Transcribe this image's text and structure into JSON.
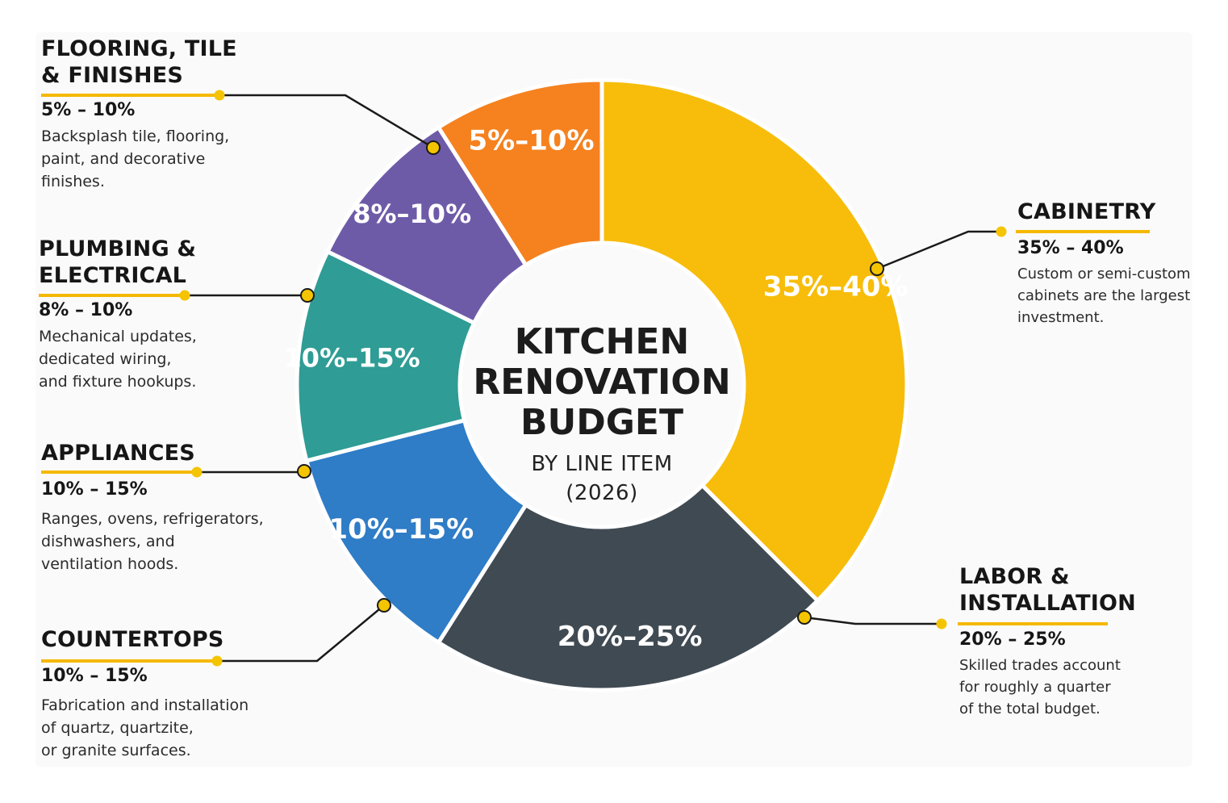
{
  "colors": {
    "leader_line": "#1a1a1a",
    "underline": "#f5b800",
    "dot": "#f5c400"
  },
  "center": {
    "title_lines": [
      "KITCHEN",
      "RENOVATION",
      "BUDGET"
    ],
    "subtitle_lines": [
      "BY LINE ITEM",
      "(2026)"
    ]
  },
  "chart_data": {
    "type": "pie",
    "title": "KITCHEN RENOVATION BUDGET BY LINE ITEM (2026)",
    "donut": true,
    "categories": [
      "CABINETRY",
      "LABOR & INSTALLATION",
      "COUNTERTOPS",
      "APPLIANCES",
      "PLUMBING & ELECTRICAL",
      "FLOORING, TILE & FINISHES"
    ],
    "slices": [
      {
        "label": "35%–40%",
        "range": "35% – 40%",
        "value": 37.5,
        "color": "#f7bd0a"
      },
      {
        "label": "20%–25%",
        "range": "20% – 25%",
        "value": 21.5,
        "color": "#404a53"
      },
      {
        "label": "10%–15%",
        "range": "10% – 15%",
        "value": 12.0,
        "color": "#2f7cc7"
      },
      {
        "label": "10%–15%",
        "range": "10% – 15%",
        "value": 11.2,
        "color": "#2f9c95"
      },
      {
        "label": "8%–10%",
        "range": "8% – 10%",
        "value": 8.8,
        "color": "#6e5ba8"
      },
      {
        "label": "5%–10%",
        "range": "5% – 10%",
        "value": 9.0,
        "color": "#f5821f"
      }
    ]
  },
  "callouts": [
    {
      "category": "FLOORING, TILE\n& FINISHES",
      "range": "5% – 10%",
      "description": "Backsplash tile, flooring,\npaint, and decorative\nfinishes."
    },
    {
      "category": "PLUMBING &\nELECTRICAL",
      "range": "8% – 10%",
      "description": "Mechanical updates,\ndedicated wiring,\nand fixture hookups."
    },
    {
      "category": "APPLIANCES",
      "range": "10% – 15%",
      "description": "Ranges, ovens, refrigerators,\ndishwashers, and\nventilation hoods."
    },
    {
      "category": "COUNTERTOPS",
      "range": "10% – 15%",
      "description": "Fabrication and installation\nof quartz, quartzite,\nor granite surfaces."
    },
    {
      "category": "CABINETRY",
      "range": "35% – 40%",
      "description": "Custom or semi-custom\ncabinets are the largest\ninvestment."
    },
    {
      "category": "LABOR &\nINSTALLATION",
      "range": "20% – 25%",
      "description": "Skilled trades account\nfor roughly a quarter\nof the total budget."
    }
  ]
}
